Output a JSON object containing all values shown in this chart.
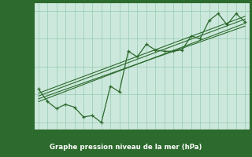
{
  "title": "Graphe pression niveau de la mer (hPa)",
  "x_values": [
    0,
    1,
    2,
    3,
    4,
    5,
    6,
    7,
    8,
    9,
    10,
    11,
    12,
    13,
    14,
    15,
    16,
    17,
    18,
    19,
    20,
    21,
    22,
    23
  ],
  "y_main": [
    1034.2,
    1033.75,
    1033.5,
    1033.65,
    1033.55,
    1033.2,
    1033.25,
    1033.0,
    1034.3,
    1034.1,
    1035.55,
    1035.35,
    1035.8,
    1035.6,
    1035.55,
    1035.55,
    1035.6,
    1036.1,
    1036.0,
    1036.65,
    1036.9,
    1036.5,
    1036.9,
    1036.6
  ],
  "ylim": [
    1032.75,
    1037.3
  ],
  "xlim": [
    -0.5,
    23.5
  ],
  "yticks": [
    1033,
    1034,
    1035,
    1036,
    1037
  ],
  "xticks": [
    0,
    1,
    2,
    3,
    4,
    5,
    6,
    7,
    8,
    9,
    10,
    11,
    12,
    13,
    14,
    15,
    16,
    17,
    18,
    19,
    20,
    21,
    22,
    23
  ],
  "line_color": "#2d6a2d",
  "bg_color": "#cce8dc",
  "grid_color": "#9ecfb8",
  "title_bg": "#2d6a2d",
  "title_fg": "#ffffff",
  "trend_lines": [
    {
      "x0": 0,
      "y0": 1033.85,
      "x1": 23,
      "y1": 1036.45
    },
    {
      "x0": 0,
      "y0": 1033.75,
      "x1": 23,
      "y1": 1036.55
    },
    {
      "x0": 0,
      "y0": 1033.95,
      "x1": 23,
      "y1": 1036.7
    },
    {
      "x0": 0,
      "y0": 1034.05,
      "x1": 23,
      "y1": 1036.8
    }
  ]
}
